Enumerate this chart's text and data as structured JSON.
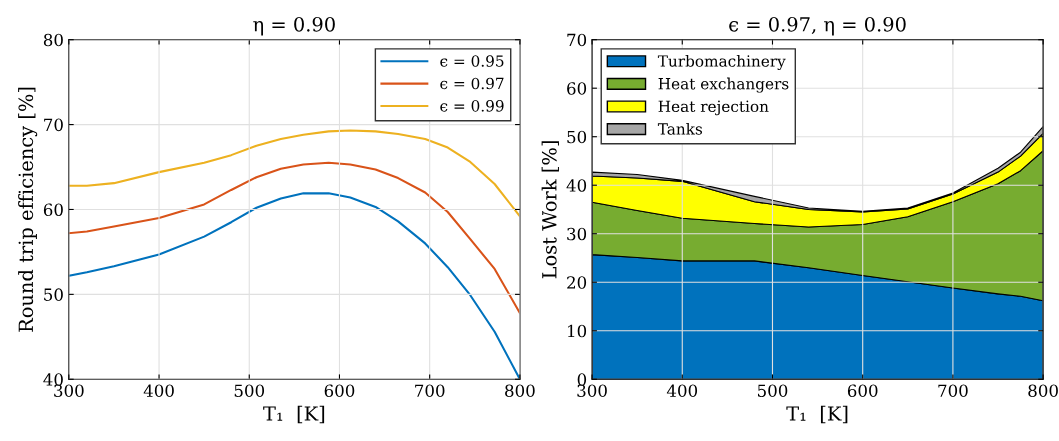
{
  "chart_data": [
    {
      "type": "line",
      "title": "η = 0.90",
      "xlabel": "T₁  [K]",
      "ylabel": "Round trip efficiency [%]",
      "x": [
        300,
        320,
        350,
        400,
        450,
        480,
        508,
        535,
        560,
        588,
        612,
        640,
        665,
        695,
        720,
        745,
        772,
        800
      ],
      "series": [
        {
          "name": "ϵ = 0.95",
          "color": "#0072bd",
          "values": [
            52.2,
            52.6,
            53.3,
            54.7,
            56.8,
            58.5,
            60.2,
            61.3,
            61.9,
            61.9,
            61.4,
            60.3,
            58.6,
            56.0,
            53.2,
            49.9,
            45.6,
            40.0
          ]
        },
        {
          "name": "ϵ = 0.97",
          "color": "#d95319",
          "values": [
            57.2,
            57.4,
            58.0,
            59.0,
            60.6,
            62.3,
            63.8,
            64.8,
            65.3,
            65.5,
            65.3,
            64.7,
            63.7,
            62.0,
            59.7,
            56.5,
            53.0,
            47.8
          ]
        },
        {
          "name": "ϵ = 0.99",
          "color": "#edb120",
          "values": [
            62.8,
            62.8,
            63.1,
            64.4,
            65.5,
            66.4,
            67.5,
            68.3,
            68.8,
            69.2,
            69.3,
            69.2,
            68.9,
            68.3,
            67.3,
            65.6,
            63.0,
            59.2
          ]
        }
      ],
      "xlim": [
        300,
        800
      ],
      "xticks": [
        300,
        400,
        500,
        600,
        700,
        800
      ],
      "ylim": [
        40,
        80
      ],
      "yticks": [
        40,
        50,
        60,
        70,
        80
      ],
      "grid": true,
      "legend": "top right"
    },
    {
      "type": "area",
      "stacked": true,
      "title": "ϵ = 0.97, η = 0.90",
      "xlabel": "T₁  [K]",
      "ylabel": "Lost Work [%]",
      "x": [
        300,
        350,
        400,
        480,
        540,
        600,
        650,
        700,
        750,
        775,
        800
      ],
      "series": [
        {
          "name": "Turbomachinery",
          "color": "#0072bd",
          "values": [
            25.7,
            25.1,
            24.4,
            24.4,
            23.0,
            21.4,
            20.1,
            18.8,
            17.6,
            17.1,
            16.2
          ]
        },
        {
          "name": "Heat exchangers",
          "color": "#77ac30",
          "values": [
            10.8,
            9.7,
            8.8,
            7.7,
            8.4,
            10.5,
            13.4,
            17.8,
            22.7,
            25.9,
            30.9
          ]
        },
        {
          "name": "Heat rejection",
          "color": "#ffff00",
          "values": [
            5.4,
            6.7,
            7.6,
            4.5,
            3.6,
            2.6,
            1.6,
            1.6,
            2.4,
            3.0,
            3.6
          ]
        },
        {
          "name": "Tanks",
          "color": "#a6a6a6",
          "values": [
            0.8,
            0.7,
            0.2,
            1.1,
            0.3,
            0.1,
            0.2,
            0.2,
            0.8,
            0.8,
            1.4
          ]
        }
      ],
      "xlim": [
        300,
        800
      ],
      "xticks": [
        300,
        400,
        500,
        600,
        700,
        800
      ],
      "ylim": [
        0,
        70
      ],
      "yticks": [
        0,
        10,
        20,
        30,
        40,
        50,
        60,
        70
      ],
      "grid": true,
      "legend": "top left"
    }
  ]
}
